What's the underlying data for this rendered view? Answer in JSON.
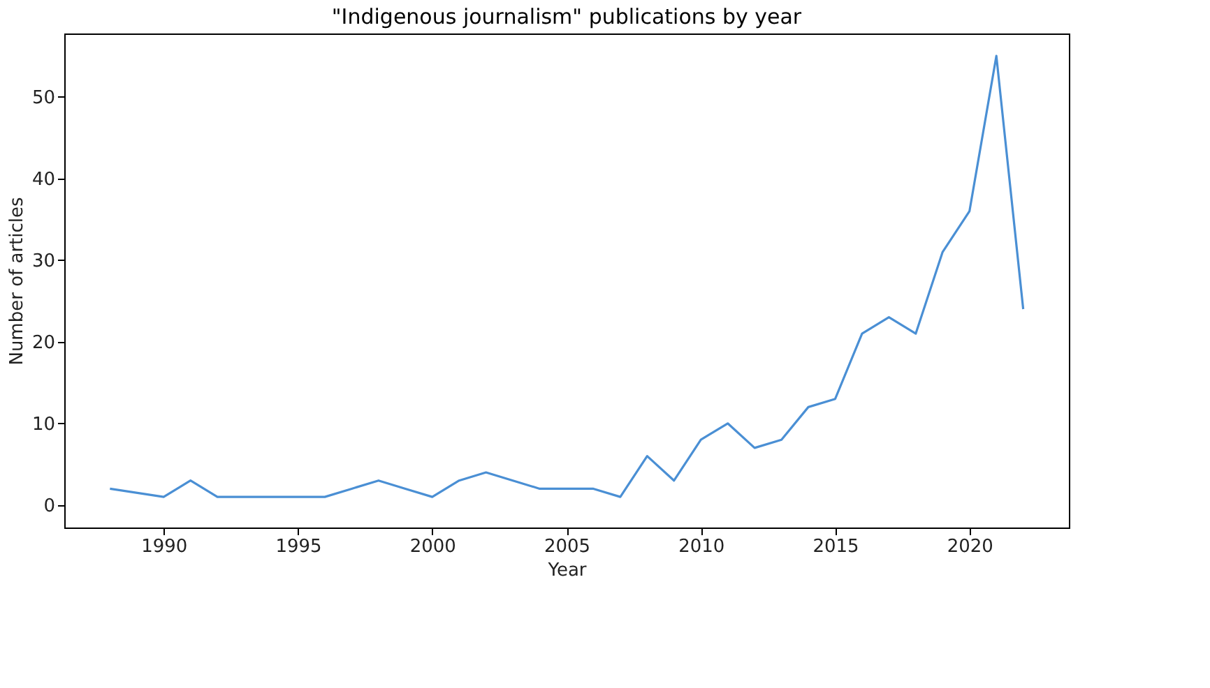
{
  "chart_data": {
    "type": "line",
    "title": "\"Indigenous journalism\" publications by year",
    "xlabel": "Year",
    "ylabel": "Number of articles",
    "x": [
      1988,
      1990,
      1991,
      1992,
      1993,
      1994,
      1995,
      1996,
      1997,
      1998,
      1999,
      2000,
      2001,
      2002,
      2003,
      2004,
      2005,
      2006,
      2007,
      2008,
      2009,
      2010,
      2011,
      2012,
      2013,
      2014,
      2015,
      2016,
      2017,
      2018,
      2019,
      2020,
      2021,
      2022
    ],
    "series": [
      {
        "color": "#4a8fd4",
        "values": [
          2,
          1,
          3,
          1,
          1,
          1,
          1,
          1,
          2,
          3,
          2,
          1,
          3,
          4,
          3,
          2,
          2,
          2,
          1,
          6,
          3,
          8,
          10,
          7,
          8,
          12,
          13,
          21,
          23,
          21,
          31,
          36,
          55,
          24
        ]
      }
    ],
    "xlim": [
      1986.3,
      2023.7
    ],
    "ylim": [
      -2.75,
      57.75
    ],
    "xticks": [
      1990,
      1995,
      2000,
      2005,
      2010,
      2015,
      2020
    ],
    "yticks": [
      0,
      10,
      20,
      30,
      40,
      50
    ],
    "grid": false,
    "marker": "none",
    "line_style": "solid"
  }
}
